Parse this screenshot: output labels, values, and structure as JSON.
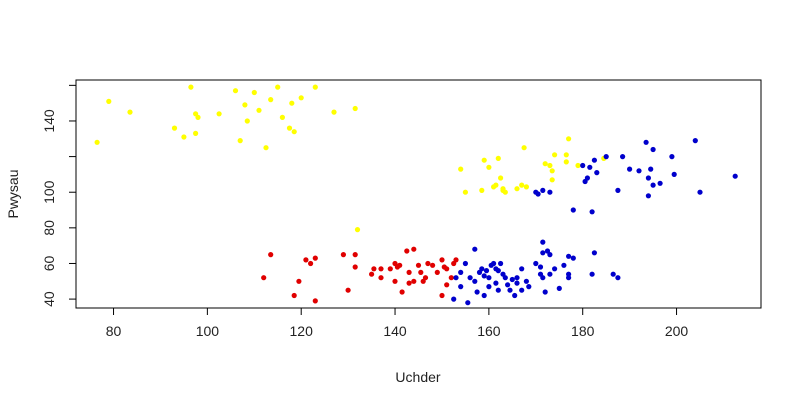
{
  "chart_data": {
    "type": "scatter",
    "title": "",
    "xlabel": "Uchder",
    "ylabel": "Pwysau",
    "xlim": [
      72,
      218
    ],
    "ylim": [
      35,
      163
    ],
    "x_ticks": [
      80,
      100,
      120,
      140,
      160,
      180,
      200
    ],
    "y_ticks": [
      40,
      60,
      80,
      100,
      140
    ],
    "y_minor_ticks": [
      120,
      160
    ],
    "grid": false,
    "colors": {
      "yellow": "#ffff00",
      "red": "#e00000",
      "blue": "#0000cc"
    },
    "series": [
      {
        "color": "#ffff00",
        "points": [
          [
            76.5,
            128
          ],
          [
            79,
            151
          ],
          [
            83.5,
            145
          ],
          [
            93,
            136
          ],
          [
            95,
            131
          ],
          [
            96.5,
            159
          ],
          [
            97.5,
            133
          ],
          [
            97.5,
            144
          ],
          [
            98,
            142
          ],
          [
            102.5,
            144
          ],
          [
            106,
            157
          ],
          [
            107,
            129
          ],
          [
            108,
            149
          ],
          [
            108.5,
            140
          ],
          [
            110,
            156
          ],
          [
            111,
            146
          ],
          [
            112.5,
            125
          ],
          [
            113.5,
            152
          ],
          [
            115,
            159
          ],
          [
            116,
            142
          ],
          [
            117.5,
            136
          ],
          [
            118,
            150
          ],
          [
            118.5,
            134
          ],
          [
            120,
            153
          ],
          [
            123,
            159
          ],
          [
            127,
            145
          ],
          [
            131.5,
            147
          ],
          [
            132,
            79
          ],
          [
            154,
            113
          ],
          [
            155,
            100
          ],
          [
            158.5,
            101
          ],
          [
            159,
            118
          ],
          [
            160,
            114
          ],
          [
            161,
            103
          ],
          [
            161.5,
            104
          ],
          [
            162,
            119
          ],
          [
            162.5,
            108
          ],
          [
            163,
            101
          ],
          [
            163,
            102
          ],
          [
            163.5,
            100
          ],
          [
            166,
            102
          ],
          [
            167,
            104
          ],
          [
            167.5,
            125
          ],
          [
            168,
            103
          ],
          [
            172,
            116
          ],
          [
            173,
            115
          ],
          [
            173.5,
            112
          ],
          [
            173.5,
            107
          ],
          [
            174,
            121
          ],
          [
            176.5,
            117
          ],
          [
            176.5,
            121
          ],
          [
            177,
            130
          ],
          [
            179,
            115
          ],
          [
            184.5,
            119
          ]
        ]
      },
      {
        "color": "#e00000",
        "points": [
          [
            112,
            52
          ],
          [
            113.5,
            65
          ],
          [
            118.5,
            42
          ],
          [
            119.5,
            50
          ],
          [
            121,
            62
          ],
          [
            122,
            60
          ],
          [
            123,
            39
          ],
          [
            123,
            63
          ],
          [
            129,
            65
          ],
          [
            130,
            45
          ],
          [
            131.5,
            65
          ],
          [
            131.5,
            58
          ],
          [
            135,
            54
          ],
          [
            135.5,
            57
          ],
          [
            137,
            57
          ],
          [
            137,
            52
          ],
          [
            139,
            57
          ],
          [
            140,
            50
          ],
          [
            140,
            60
          ],
          [
            140.5,
            58
          ],
          [
            141,
            59
          ],
          [
            141.5,
            44
          ],
          [
            142.5,
            67
          ],
          [
            143,
            49
          ],
          [
            143,
            55
          ],
          [
            144,
            68
          ],
          [
            144,
            50
          ],
          [
            145,
            59
          ],
          [
            145.5,
            55
          ],
          [
            146,
            50
          ],
          [
            146.5,
            52
          ],
          [
            147,
            60
          ],
          [
            148,
            59
          ],
          [
            149,
            55
          ],
          [
            150,
            62
          ],
          [
            150,
            42
          ],
          [
            150.5,
            58
          ],
          [
            151,
            48
          ],
          [
            151,
            57
          ],
          [
            152,
            52
          ],
          [
            152.5,
            60
          ],
          [
            153,
            62
          ]
        ]
      },
      {
        "color": "#0000cc",
        "points": [
          [
            152.5,
            40
          ],
          [
            153,
            52
          ],
          [
            154,
            55
          ],
          [
            154,
            47
          ],
          [
            155,
            60
          ],
          [
            155.5,
            38
          ],
          [
            156,
            52
          ],
          [
            157,
            50
          ],
          [
            157,
            68
          ],
          [
            157.5,
            44
          ],
          [
            158,
            55
          ],
          [
            158.5,
            57
          ],
          [
            159,
            53
          ],
          [
            159,
            42
          ],
          [
            159.5,
            56
          ],
          [
            160,
            52
          ],
          [
            160,
            47
          ],
          [
            160.5,
            59
          ],
          [
            161,
            60
          ],
          [
            161.5,
            49
          ],
          [
            161.5,
            57
          ],
          [
            162,
            56
          ],
          [
            162,
            45
          ],
          [
            162.5,
            60
          ],
          [
            163,
            54
          ],
          [
            163.5,
            52
          ],
          [
            164,
            48
          ],
          [
            164.5,
            45
          ],
          [
            165,
            51
          ],
          [
            165.5,
            42
          ],
          [
            166,
            49
          ],
          [
            166,
            52
          ],
          [
            167,
            57
          ],
          [
            167,
            45
          ],
          [
            168,
            50
          ],
          [
            168.5,
            47
          ],
          [
            170,
            60
          ],
          [
            170,
            100
          ],
          [
            170.5,
            99
          ],
          [
            171,
            58
          ],
          [
            171,
            54
          ],
          [
            171.5,
            101
          ],
          [
            171.5,
            72
          ],
          [
            171.5,
            52
          ],
          [
            171.5,
            66
          ],
          [
            172,
            44
          ],
          [
            172.5,
            67
          ],
          [
            173,
            65
          ],
          [
            173,
            54
          ],
          [
            173,
            100
          ],
          [
            174,
            57
          ],
          [
            175,
            46
          ],
          [
            176,
            59
          ],
          [
            177,
            54
          ],
          [
            177,
            64
          ],
          [
            177,
            52
          ],
          [
            178,
            63
          ],
          [
            178,
            90
          ],
          [
            180,
            115
          ],
          [
            180.5,
            106
          ],
          [
            181,
            108
          ],
          [
            181.5,
            114
          ],
          [
            182,
            89
          ],
          [
            182,
            54
          ],
          [
            182.5,
            118
          ],
          [
            182.5,
            66
          ],
          [
            183,
            111
          ],
          [
            185,
            120
          ],
          [
            186.5,
            54
          ],
          [
            187.5,
            101
          ],
          [
            187.5,
            52
          ],
          [
            188.5,
            120
          ],
          [
            190,
            113
          ],
          [
            192,
            112
          ],
          [
            193.5,
            128
          ],
          [
            194,
            108
          ],
          [
            194,
            98
          ],
          [
            194.5,
            113
          ],
          [
            195,
            124
          ],
          [
            195,
            104
          ],
          [
            196.5,
            105
          ],
          [
            199,
            120
          ],
          [
            199.5,
            110
          ],
          [
            204,
            129
          ],
          [
            205,
            100
          ],
          [
            212.5,
            109
          ]
        ]
      }
    ]
  }
}
